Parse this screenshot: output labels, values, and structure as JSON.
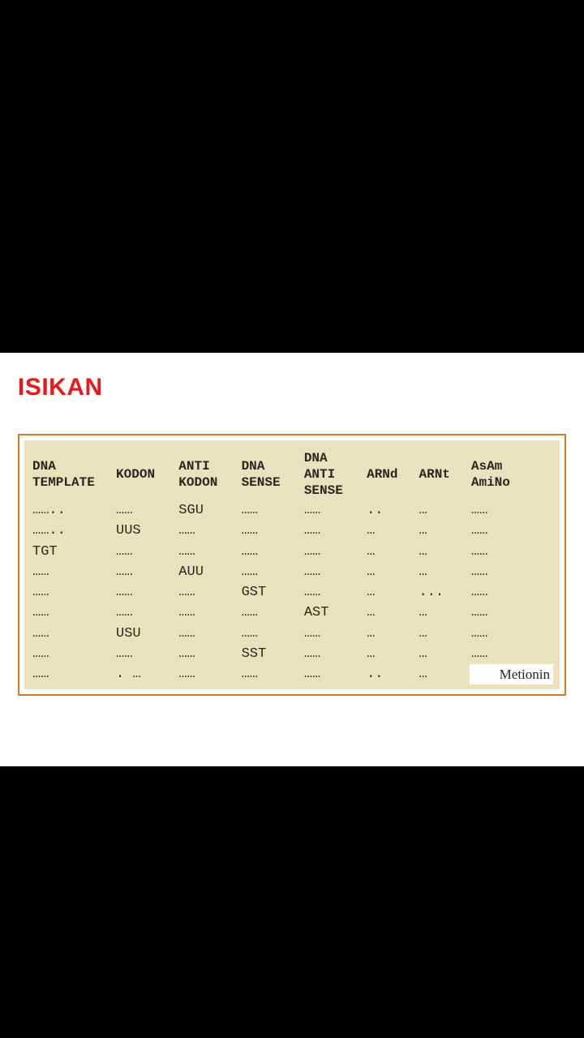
{
  "title": "ISIKAN",
  "colors": {
    "page_bg": "#000000",
    "band_bg": "#ffffff",
    "title_color": "#e51b1b",
    "frame_border": "#d97a23",
    "paper_bg": "#e9e2be",
    "text_color": "#2a261e"
  },
  "table": {
    "columns": [
      "DNA TEMPLATE",
      "KODON",
      "ANTI KODON",
      "DNA SENSE",
      "DNA ANTI SENSE",
      "ARNd",
      "ARNt",
      "AsAm AmiNo"
    ],
    "dots": {
      "wide": "……..",
      "med": "……",
      "narrow": "..",
      "tri": "…"
    },
    "rows": [
      {
        "c1": "……..",
        "c2": "……",
        "c3": "SGU",
        "c4": "……",
        "c5": "……",
        "c6": "..",
        "c7": "…",
        "c8": "……"
      },
      {
        "c1": "……..",
        "c2": "UUS",
        "c3": "……",
        "c4": "……",
        "c5": "……",
        "c6": "…",
        "c7": "…",
        "c8": "……"
      },
      {
        "c1": "TGT",
        "c2": "……",
        "c3": "……",
        "c4": "……",
        "c5": "……",
        "c6": "…",
        "c7": "…",
        "c8": "……"
      },
      {
        "c1": "……",
        "c2": "……",
        "c3": "AUU",
        "c4": "……",
        "c5": "……",
        "c6": "…",
        "c7": "…",
        "c8": "……"
      },
      {
        "c1": "……",
        "c2": "……",
        "c3": "……",
        "c4": "GST",
        "c5": "……",
        "c6": "…",
        "c7": "...",
        "c8": "……"
      },
      {
        "c1": "……",
        "c2": "……",
        "c3": "……",
        "c4": "……",
        "c5": "AST",
        "c6": "…",
        "c7": "…",
        "c8": "……"
      },
      {
        "c1": "……",
        "c2": "USU",
        "c3": "……",
        "c4": "……",
        "c5": "……",
        "c6": "…",
        "c7": "…",
        "c8": "……"
      },
      {
        "c1": "……",
        "c2": "……",
        "c3": "……",
        "c4": "SST",
        "c5": "……",
        "c6": "…",
        "c7": "…",
        "c8": "……"
      },
      {
        "c1": "……",
        "c2": ".  …",
        "c3": "……",
        "c4": "……",
        "c5": "……",
        "c6": "..",
        "c7": "…",
        "c8": "Metionin",
        "c8_is_met": true
      }
    ]
  }
}
